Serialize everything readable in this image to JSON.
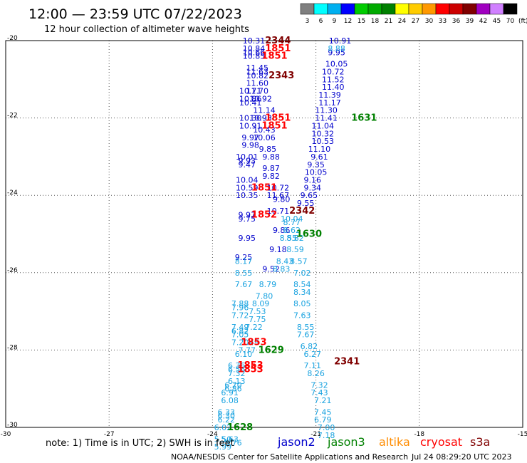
{
  "header": {
    "title": "12:00 — 23:59 UTC 07/22/2023",
    "subtitle": "12 hour collection of altimeter wave heights"
  },
  "legend_scale": {
    "unit": "(ft)",
    "bins": [
      {
        "label": "3",
        "color": "#7f7f7f"
      },
      {
        "label": "6",
        "color": "#00ffff"
      },
      {
        "label": "9",
        "color": "#00b0f0"
      },
      {
        "label": "12",
        "color": "#0000ff"
      },
      {
        "label": "15",
        "color": "#00cc00"
      },
      {
        "label": "18",
        "color": "#00aa00"
      },
      {
        "label": "21",
        "color": "#008000"
      },
      {
        "label": "24",
        "color": "#ffff00"
      },
      {
        "label": "27",
        "color": "#ffcc00"
      },
      {
        "label": "30",
        "color": "#ff9900"
      },
      {
        "label": "33",
        "color": "#ff0000"
      },
      {
        "label": "36",
        "color": "#cc0000"
      },
      {
        "label": "39",
        "color": "#800000"
      },
      {
        "label": "42",
        "color": "#a000c0"
      },
      {
        "label": "45",
        "color": "#d080ff"
      },
      {
        "label": "70",
        "color": "#000000"
      }
    ]
  },
  "note": "note: 1) Time is in UTC; 2) SWH is in feet",
  "satellites": [
    {
      "name": "jason2",
      "color": "#0000cc"
    },
    {
      "name": "jason3",
      "color": "#008000"
    },
    {
      "name": "altika",
      "color": "#ff8c00"
    },
    {
      "name": "cryosat",
      "color": "#ff0000"
    },
    {
      "name": "s3a",
      "color": "#800000"
    }
  ],
  "credit": "NOAA/NESDIS Center for Satellite Applications and Research",
  "timestamp": "Jul 24 08:29:20 UTC 2023",
  "colors": {
    "c1": "#0000cc",
    "c2": "#1aa3e0",
    "c3": "#ff0000",
    "c4": "#800000",
    "c5": "#008000"
  },
  "chart_data": {
    "type": "scatter",
    "title": "12:00 — 23:59 UTC 07/22/2023",
    "xlim": [
      -30,
      -15
    ],
    "ylim": [
      -30,
      -20
    ],
    "x_ticks": [
      -30,
      -27,
      -24,
      -21,
      -18,
      -15
    ],
    "y_ticks": [
      -20,
      -22,
      -24,
      -26,
      -28,
      -30
    ],
    "grid": true,
    "points": [
      {
        "lon": -22.8,
        "lat": -20.0,
        "v": "10.31",
        "c": "c1"
      },
      {
        "lon": -22.8,
        "lat": -20.2,
        "v": "10.84",
        "c": "c1"
      },
      {
        "lon": -22.8,
        "lat": -20.3,
        "v": "10.66",
        "c": "c1"
      },
      {
        "lon": -22.8,
        "lat": -20.4,
        "v": "10.85",
        "c": "c1"
      },
      {
        "lon": -22.7,
        "lat": -20.7,
        "v": "11.45",
        "c": "c1"
      },
      {
        "lon": -22.7,
        "lat": -20.8,
        "v": "11.63",
        "c": "c1"
      },
      {
        "lon": -22.7,
        "lat": -20.9,
        "v": "10.82",
        "c": "c1"
      },
      {
        "lon": -22.7,
        "lat": -21.1,
        "v": "11.60",
        "c": "c1"
      },
      {
        "lon": -22.7,
        "lat": -21.3,
        "v": "11.70",
        "c": "c1"
      },
      {
        "lon": -22.9,
        "lat": -21.3,
        "v": "10.71",
        "c": "c1"
      },
      {
        "lon": -22.9,
        "lat": -21.5,
        "v": "10.86",
        "c": "c1"
      },
      {
        "lon": -22.6,
        "lat": -21.5,
        "v": "10.92",
        "c": "c1"
      },
      {
        "lon": -22.9,
        "lat": -21.6,
        "v": "10.41",
        "c": "c1"
      },
      {
        "lon": -22.5,
        "lat": -21.8,
        "v": "11.14",
        "c": "c1"
      },
      {
        "lon": -22.9,
        "lat": -22.0,
        "v": "10.30",
        "c": "c1"
      },
      {
        "lon": -22.6,
        "lat": -22.0,
        "v": "10.93",
        "c": "c1"
      },
      {
        "lon": -22.9,
        "lat": -22.2,
        "v": "10.91",
        "c": "c1"
      },
      {
        "lon": -22.5,
        "lat": -22.3,
        "v": "10.43",
        "c": "c1"
      },
      {
        "lon": -22.9,
        "lat": -22.5,
        "v": "9.97",
        "c": "c1"
      },
      {
        "lon": -22.5,
        "lat": -22.5,
        "v": "10.06",
        "c": "c1"
      },
      {
        "lon": -22.9,
        "lat": -22.7,
        "v": "9.98",
        "c": "c1"
      },
      {
        "lon": -22.4,
        "lat": -22.8,
        "v": "9.85",
        "c": "c1"
      },
      {
        "lon": -23.0,
        "lat": -23.0,
        "v": "10.01",
        "c": "c1"
      },
      {
        "lon": -22.3,
        "lat": -23.0,
        "v": "9.88",
        "c": "c1"
      },
      {
        "lon": -23.0,
        "lat": -23.1,
        "v": "9.93",
        "c": "c1"
      },
      {
        "lon": -23.0,
        "lat": -23.2,
        "v": "9.47",
        "c": "c1"
      },
      {
        "lon": -22.3,
        "lat": -23.3,
        "v": "9.87",
        "c": "c1"
      },
      {
        "lon": -22.3,
        "lat": -23.5,
        "v": "9.82",
        "c": "c1"
      },
      {
        "lon": -23.0,
        "lat": -23.6,
        "v": "10.04",
        "c": "c1"
      },
      {
        "lon": -22.1,
        "lat": -23.8,
        "v": "10.72",
        "c": "c1"
      },
      {
        "lon": -23.0,
        "lat": -23.8,
        "v": "10.59",
        "c": "c1"
      },
      {
        "lon": -22.1,
        "lat": -24.0,
        "v": "11.67",
        "c": "c1"
      },
      {
        "lon": -23.0,
        "lat": -24.0,
        "v": "10.35",
        "c": "c1"
      },
      {
        "lon": -22.0,
        "lat": -24.1,
        "v": "9.80",
        "c": "c1"
      },
      {
        "lon": -23.0,
        "lat": -24.5,
        "v": "9.97",
        "c": "c1"
      },
      {
        "lon": -22.1,
        "lat": -24.4,
        "v": "10.71",
        "c": "c1"
      },
      {
        "lon": -23.0,
        "lat": -24.6,
        "v": "9.75",
        "c": "c1"
      },
      {
        "lon": -23.0,
        "lat": -25.1,
        "v": "9.95",
        "c": "c1"
      },
      {
        "lon": -22.0,
        "lat": -24.9,
        "v": "9.86",
        "c": "c1"
      },
      {
        "lon": -22.1,
        "lat": -25.4,
        "v": "9.18",
        "c": "c1"
      },
      {
        "lon": -23.1,
        "lat": -25.6,
        "v": "9.25",
        "c": "c1"
      },
      {
        "lon": -22.3,
        "lat": -25.9,
        "v": "9.52",
        "c": "c1"
      },
      {
        "lon": -20.3,
        "lat": -20.0,
        "v": "10.91",
        "c": "c1"
      },
      {
        "lon": -20.4,
        "lat": -20.3,
        "v": "9.95",
        "c": "c1"
      },
      {
        "lon": -20.4,
        "lat": -20.6,
        "v": "10.05",
        "c": "c1"
      },
      {
        "lon": -20.5,
        "lat": -20.8,
        "v": "10.72",
        "c": "c1"
      },
      {
        "lon": -20.5,
        "lat": -21.0,
        "v": "11.52",
        "c": "c1"
      },
      {
        "lon": -20.5,
        "lat": -21.2,
        "v": "11.40",
        "c": "c1"
      },
      {
        "lon": -20.6,
        "lat": -21.4,
        "v": "11.39",
        "c": "c1"
      },
      {
        "lon": -20.6,
        "lat": -21.6,
        "v": "11.17",
        "c": "c1"
      },
      {
        "lon": -20.7,
        "lat": -21.8,
        "v": "11.30",
        "c": "c1"
      },
      {
        "lon": -20.7,
        "lat": -22.0,
        "v": "11.41",
        "c": "c1"
      },
      {
        "lon": -20.8,
        "lat": -22.2,
        "v": "11.04",
        "c": "c1"
      },
      {
        "lon": -20.8,
        "lat": -22.4,
        "v": "10.32",
        "c": "c1"
      },
      {
        "lon": -20.8,
        "lat": -22.6,
        "v": "10.53",
        "c": "c1"
      },
      {
        "lon": -20.9,
        "lat": -22.8,
        "v": "11.10",
        "c": "c1"
      },
      {
        "lon": -20.9,
        "lat": -23.0,
        "v": "9.61",
        "c": "c1"
      },
      {
        "lon": -21.0,
        "lat": -23.2,
        "v": "9.35",
        "c": "c1"
      },
      {
        "lon": -21.0,
        "lat": -23.4,
        "v": "10.05",
        "c": "c1"
      },
      {
        "lon": -21.1,
        "lat": -23.6,
        "v": "9.16",
        "c": "c1"
      },
      {
        "lon": -21.1,
        "lat": -23.8,
        "v": "9.34",
        "c": "c1"
      },
      {
        "lon": -21.2,
        "lat": -24.0,
        "v": "9.65",
        "c": "c1"
      },
      {
        "lon": -21.3,
        "lat": -24.2,
        "v": "9.55",
        "c": "c1"
      },
      {
        "lon": -20.4,
        "lat": -20.2,
        "v": "8.88",
        "c": "c2"
      },
      {
        "lon": -21.7,
        "lat": -24.6,
        "v": "10.04",
        "c": "c2"
      },
      {
        "lon": -21.7,
        "lat": -24.7,
        "v": "8.77",
        "c": "c2"
      },
      {
        "lon": -21.7,
        "lat": -24.9,
        "v": "8.62",
        "c": "c2"
      },
      {
        "lon": -21.6,
        "lat": -25.1,
        "v": "8.82",
        "c": "c2"
      },
      {
        "lon": -21.8,
        "lat": -25.1,
        "v": "8.55",
        "c": "c2"
      },
      {
        "lon": -21.6,
        "lat": -25.4,
        "v": "8.59",
        "c": "c2"
      },
      {
        "lon": -21.9,
        "lat": -25.7,
        "v": "8.43",
        "c": "c2"
      },
      {
        "lon": -21.5,
        "lat": -25.7,
        "v": "8.57",
        "c": "c2"
      },
      {
        "lon": -22.0,
        "lat": -25.9,
        "v": "8.83",
        "c": "c2"
      },
      {
        "lon": -21.4,
        "lat": -26.0,
        "v": "7.02",
        "c": "c2"
      },
      {
        "lon": -23.1,
        "lat": -25.7,
        "v": "8.17",
        "c": "c2"
      },
      {
        "lon": -23.1,
        "lat": -26.0,
        "v": "8.55",
        "c": "c2"
      },
      {
        "lon": -21.4,
        "lat": -26.3,
        "v": "8.54",
        "c": "c2"
      },
      {
        "lon": -22.4,
        "lat": -26.3,
        "v": "8.79",
        "c": "c2"
      },
      {
        "lon": -23.1,
        "lat": -26.3,
        "v": "7.67",
        "c": "c2"
      },
      {
        "lon": -21.4,
        "lat": -26.5,
        "v": "8.34",
        "c": "c2"
      },
      {
        "lon": -22.5,
        "lat": -26.6,
        "v": "7.80",
        "c": "c2"
      },
      {
        "lon": -21.4,
        "lat": -26.8,
        "v": "8.05",
        "c": "c2"
      },
      {
        "lon": -22.6,
        "lat": -26.8,
        "v": "8.09",
        "c": "c2"
      },
      {
        "lon": -23.2,
        "lat": -26.8,
        "v": "7.88",
        "c": "c2"
      },
      {
        "lon": -23.2,
        "lat": -26.9,
        "v": "7.96",
        "c": "c2"
      },
      {
        "lon": -21.4,
        "lat": -27.1,
        "v": "7.63",
        "c": "c2"
      },
      {
        "lon": -22.7,
        "lat": -27.0,
        "v": "7.53",
        "c": "c2"
      },
      {
        "lon": -23.2,
        "lat": -27.1,
        "v": "7.72",
        "c": "c2"
      },
      {
        "lon": -22.7,
        "lat": -27.2,
        "v": "7.75",
        "c": "c2"
      },
      {
        "lon": -21.3,
        "lat": -27.4,
        "v": "8.55",
        "c": "c2"
      },
      {
        "lon": -22.8,
        "lat": -27.4,
        "v": "7.22",
        "c": "c2"
      },
      {
        "lon": -23.2,
        "lat": -27.4,
        "v": "7.49",
        "c": "c2"
      },
      {
        "lon": -23.2,
        "lat": -27.5,
        "v": "6.82",
        "c": "c2"
      },
      {
        "lon": -21.3,
        "lat": -27.6,
        "v": "7.67",
        "c": "c2"
      },
      {
        "lon": -23.2,
        "lat": -27.6,
        "v": "7.05",
        "c": "c2"
      },
      {
        "lon": -23.2,
        "lat": -27.8,
        "v": "7.20",
        "c": "c2"
      },
      {
        "lon": -22.9,
        "lat": -27.8,
        "v": "7.49",
        "c": "c2"
      },
      {
        "lon": -21.2,
        "lat": -27.9,
        "v": "6.82",
        "c": "c2"
      },
      {
        "lon": -23.0,
        "lat": -28.0,
        "v": "7.77",
        "c": "c2"
      },
      {
        "lon": -21.1,
        "lat": -28.1,
        "v": "6.27",
        "c": "c2"
      },
      {
        "lon": -23.1,
        "lat": -28.1,
        "v": "6.10",
        "c": "c2"
      },
      {
        "lon": -21.1,
        "lat": -28.4,
        "v": "7.11",
        "c": "c2"
      },
      {
        "lon": -23.3,
        "lat": -28.4,
        "v": "6.36",
        "c": "c2"
      },
      {
        "lon": -23.3,
        "lat": -28.5,
        "v": "6.56",
        "c": "c2"
      },
      {
        "lon": -21.0,
        "lat": -28.6,
        "v": "8.26",
        "c": "c2"
      },
      {
        "lon": -23.3,
        "lat": -28.6,
        "v": "7.32",
        "c": "c2"
      },
      {
        "lon": -23.3,
        "lat": -28.8,
        "v": "6.13",
        "c": "c2"
      },
      {
        "lon": -20.9,
        "lat": -28.9,
        "v": "7.32",
        "c": "c2"
      },
      {
        "lon": -23.4,
        "lat": -28.9,
        "v": "6.70",
        "c": "c2"
      },
      {
        "lon": -23.4,
        "lat": -29.0,
        "v": "6.86",
        "c": "c2"
      },
      {
        "lon": -20.9,
        "lat": -29.1,
        "v": "7.43",
        "c": "c2"
      },
      {
        "lon": -23.5,
        "lat": -29.1,
        "v": "6.91",
        "c": "c2"
      },
      {
        "lon": -20.8,
        "lat": -29.3,
        "v": "7.21",
        "c": "c2"
      },
      {
        "lon": -23.5,
        "lat": -29.3,
        "v": "6.08",
        "c": "c2"
      },
      {
        "lon": -20.8,
        "lat": -29.6,
        "v": "7.45",
        "c": "c2"
      },
      {
        "lon": -23.6,
        "lat": -29.6,
        "v": "6.33",
        "c": "c2"
      },
      {
        "lon": -20.8,
        "lat": -29.8,
        "v": "6.79",
        "c": "c2"
      },
      {
        "lon": -23.6,
        "lat": -29.7,
        "v": "6.30",
        "c": "c2"
      },
      {
        "lon": -23.6,
        "lat": -29.8,
        "v": "6.22",
        "c": "c2"
      },
      {
        "lon": -20.7,
        "lat": -30.0,
        "v": "7.00",
        "c": "c2"
      },
      {
        "lon": -23.7,
        "lat": -30.0,
        "v": "6.02",
        "c": "c2"
      },
      {
        "lon": -20.7,
        "lat": -30.2,
        "v": "7.18",
        "c": "c2"
      },
      {
        "lon": -23.7,
        "lat": -30.3,
        "v": "5.50",
        "c": "c2"
      },
      {
        "lon": -23.5,
        "lat": -30.3,
        "v": "5.63",
        "c": "c2"
      },
      {
        "lon": -23.7,
        "lat": -30.5,
        "v": "5.99",
        "c": "c2"
      },
      {
        "lon": -23.4,
        "lat": -30.4,
        "v": "5.76",
        "c": "c2"
      }
    ],
    "pass_labels": [
      {
        "lon": -22.1,
        "lat": -20.0,
        "v": "2344",
        "c": "c4"
      },
      {
        "lon": -22.1,
        "lat": -20.2,
        "v": "1851",
        "c": "c3"
      },
      {
        "lon": -22.2,
        "lat": -20.4,
        "v": "1851",
        "c": "c3"
      },
      {
        "lon": -22.0,
        "lat": -20.9,
        "v": "2343",
        "c": "c4"
      },
      {
        "lon": -22.1,
        "lat": -22.0,
        "v": "1851",
        "c": "c3"
      },
      {
        "lon": -22.2,
        "lat": -22.2,
        "v": "1851",
        "c": "c3"
      },
      {
        "lon": -19.6,
        "lat": -22.0,
        "v": "1631",
        "c": "c5"
      },
      {
        "lon": -22.5,
        "lat": -23.8,
        "v": "1851",
        "c": "c3"
      },
      {
        "lon": -22.5,
        "lat": -24.5,
        "v": "1852",
        "c": "c3"
      },
      {
        "lon": -21.4,
        "lat": -24.4,
        "v": "2342",
        "c": "c4"
      },
      {
        "lon": -21.2,
        "lat": -25.0,
        "v": "1630",
        "c": "c5"
      },
      {
        "lon": -22.8,
        "lat": -27.8,
        "v": "1853",
        "c": "c3"
      },
      {
        "lon": -22.3,
        "lat": -28.0,
        "v": "1629",
        "c": "c5"
      },
      {
        "lon": -22.9,
        "lat": -28.4,
        "v": "1853",
        "c": "c3"
      },
      {
        "lon": -22.9,
        "lat": -28.5,
        "v": "1853",
        "c": "c3"
      },
      {
        "lon": -20.1,
        "lat": -28.3,
        "v": "2341",
        "c": "c4"
      },
      {
        "lon": -23.2,
        "lat": -30.0,
        "v": "1628",
        "c": "c5"
      }
    ]
  }
}
